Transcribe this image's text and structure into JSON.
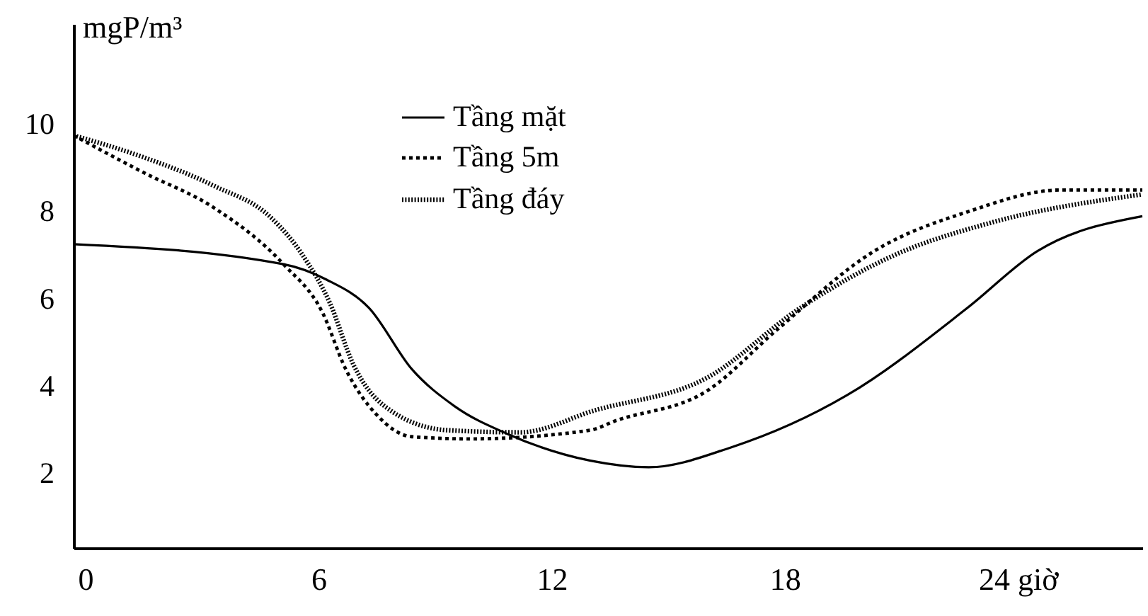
{
  "chart_data": {
    "type": "line",
    "ylabel": "mgP/m³",
    "xlim": [
      -0.3,
      27.2
    ],
    "xticks": [
      0,
      6,
      12,
      18,
      {
        "value": 24,
        "label": "24 giờ"
      }
    ],
    "ylim": [
      0.3,
      12.3
    ],
    "yticks": [
      2,
      4,
      6,
      8,
      10
    ],
    "grid": false,
    "legend": "top",
    "marker": "none",
    "series": [
      {
        "name": "Tầng mặt",
        "color": "#000000",
        "line_style": "solid",
        "x": [
          -0.3,
          5.1,
          6.2,
          7.3,
          8.4,
          9.5,
          10.9,
          13,
          14.5,
          16.6,
          19.6,
          22.7,
          24.5,
          27.2
        ],
        "values": [
          7.26,
          6.8,
          6.45,
          5.8,
          4.4,
          3.55,
          2.9,
          2.3,
          2.15,
          2.6,
          3.8,
          5.8,
          7.1,
          7.9
        ]
      },
      {
        "name": "Tầng 5m",
        "color": "#000000",
        "line_style": "dotted",
        "x": [
          -0.3,
          1.5,
          3.3,
          5.1,
          6.1,
          6.7,
          7.5,
          8.4,
          9.9,
          13,
          13.6,
          16,
          17.8,
          20.3,
          22.7,
          25.1,
          27.2
        ],
        "values": [
          9.75,
          8.9,
          8.1,
          6.8,
          5.7,
          4.4,
          3.35,
          2.85,
          2.8,
          3.0,
          3.2,
          3.9,
          5.3,
          7.1,
          8.0,
          8.5,
          8.5
        ]
      },
      {
        "name": "Tầng đáy",
        "color": "#000000",
        "line_style": "dotted",
        "x": [
          -0.3,
          1.5,
          3.3,
          4.8,
          5.6,
          6.3,
          6.9,
          7.7,
          9.3,
          11.2,
          13.1,
          16,
          18.4,
          20.8,
          23.3,
          27.2
        ],
        "values": [
          9.75,
          9.25,
          8.6,
          7.85,
          7.0,
          5.9,
          4.5,
          3.55,
          3.0,
          2.95,
          3.45,
          4.2,
          5.8,
          7.0,
          7.75,
          8.4
        ]
      }
    ]
  }
}
